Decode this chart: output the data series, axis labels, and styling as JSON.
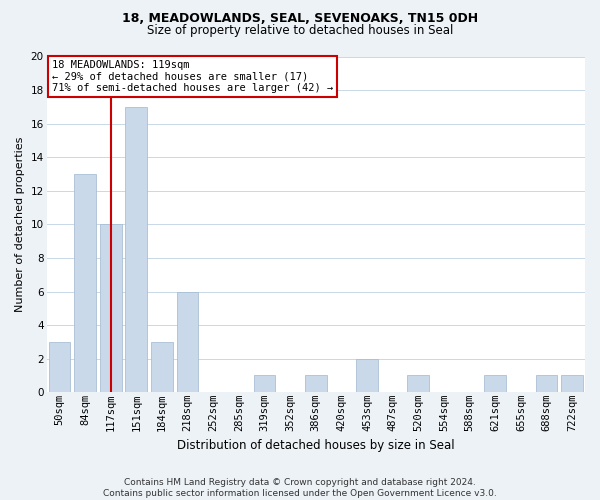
{
  "title_line1": "18, MEADOWLANDS, SEAL, SEVENOAKS, TN15 0DH",
  "title_line2": "Size of property relative to detached houses in Seal",
  "xlabel": "Distribution of detached houses by size in Seal",
  "ylabel": "Number of detached properties",
  "bar_labels": [
    "50sqm",
    "84sqm",
    "117sqm",
    "151sqm",
    "184sqm",
    "218sqm",
    "252sqm",
    "285sqm",
    "319sqm",
    "352sqm",
    "386sqm",
    "420sqm",
    "453sqm",
    "487sqm",
    "520sqm",
    "554sqm",
    "588sqm",
    "621sqm",
    "655sqm",
    "688sqm",
    "722sqm"
  ],
  "bar_values": [
    3,
    13,
    10,
    17,
    3,
    6,
    0,
    0,
    1,
    0,
    1,
    0,
    2,
    0,
    1,
    0,
    0,
    1,
    0,
    1,
    1
  ],
  "bar_color": "#c9d9e9",
  "bar_edge_color": "#a0b8d0",
  "vline_color": "#cc0000",
  "vline_x_index": 2,
  "annotation_title": "18 MEADOWLANDS: 119sqm",
  "annotation_line2": "← 29% of detached houses are smaller (17)",
  "annotation_line3": "71% of semi-detached houses are larger (42) →",
  "ylim": [
    0,
    20
  ],
  "yticks": [
    0,
    2,
    4,
    6,
    8,
    10,
    12,
    14,
    16,
    18,
    20
  ],
  "footer_line1": "Contains HM Land Registry data © Crown copyright and database right 2024.",
  "footer_line2": "Contains public sector information licensed under the Open Government Licence v3.0.",
  "bg_color": "#edf2f7",
  "plot_bg_color": "#ffffff",
  "grid_color": "#c8d8e8",
  "title1_fontsize": 9,
  "title2_fontsize": 8.5,
  "ylabel_fontsize": 8,
  "xlabel_fontsize": 8.5,
  "tick_fontsize": 7.5,
  "annotation_fontsize": 7.5,
  "footer_fontsize": 6.5
}
